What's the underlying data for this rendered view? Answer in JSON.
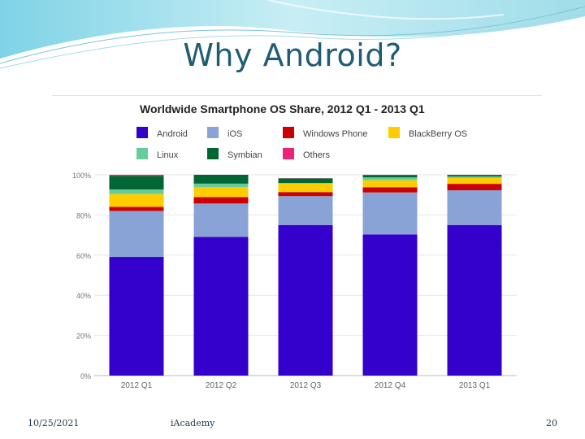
{
  "slide": {
    "title": "Why Android?",
    "footer_date": "10/25/2021",
    "footer_org": "iAcademy",
    "page_number": "20"
  },
  "chart_data": {
    "type": "bar",
    "stacked": true,
    "percent": true,
    "title": "Worldwide Smartphone OS Share, 2012 Q1 - 2013 Q1",
    "categories": [
      "2012 Q1",
      "2012 Q2",
      "2012 Q3",
      "2012 Q4",
      "2013 Q1"
    ],
    "y_ticks": [
      "0%",
      "20%",
      "40%",
      "60%",
      "80%",
      "100%"
    ],
    "ylim": [
      0,
      100
    ],
    "grid": true,
    "legend_position": "top",
    "series": [
      {
        "name": "Android",
        "color": "#3300cc",
        "values": [
          59.1,
          69.1,
          75.0,
          70.3,
          75.0
        ]
      },
      {
        "name": "iOS",
        "color": "#8aa3d6",
        "values": [
          22.9,
          16.6,
          14.4,
          20.9,
          17.3
        ]
      },
      {
        "name": "Windows Phone",
        "color": "#cc0000",
        "values": [
          2.0,
          3.2,
          2.0,
          2.6,
          3.2
        ]
      },
      {
        "name": "BlackBerry OS",
        "color": "#ffcc00",
        "values": [
          6.4,
          4.9,
          4.3,
          3.5,
          2.9
        ]
      },
      {
        "name": "Linux",
        "color": "#66cc99",
        "values": [
          2.3,
          1.8,
          0.2,
          1.4,
          0.8
        ]
      },
      {
        "name": "Symbian",
        "color": "#006633",
        "values": [
          6.8,
          4.4,
          2.3,
          1.2,
          0.6
        ]
      },
      {
        "name": "Others",
        "color": "#ee2277",
        "values": [
          0.5,
          0.0,
          0.1,
          0.1,
          0.2
        ]
      }
    ]
  }
}
